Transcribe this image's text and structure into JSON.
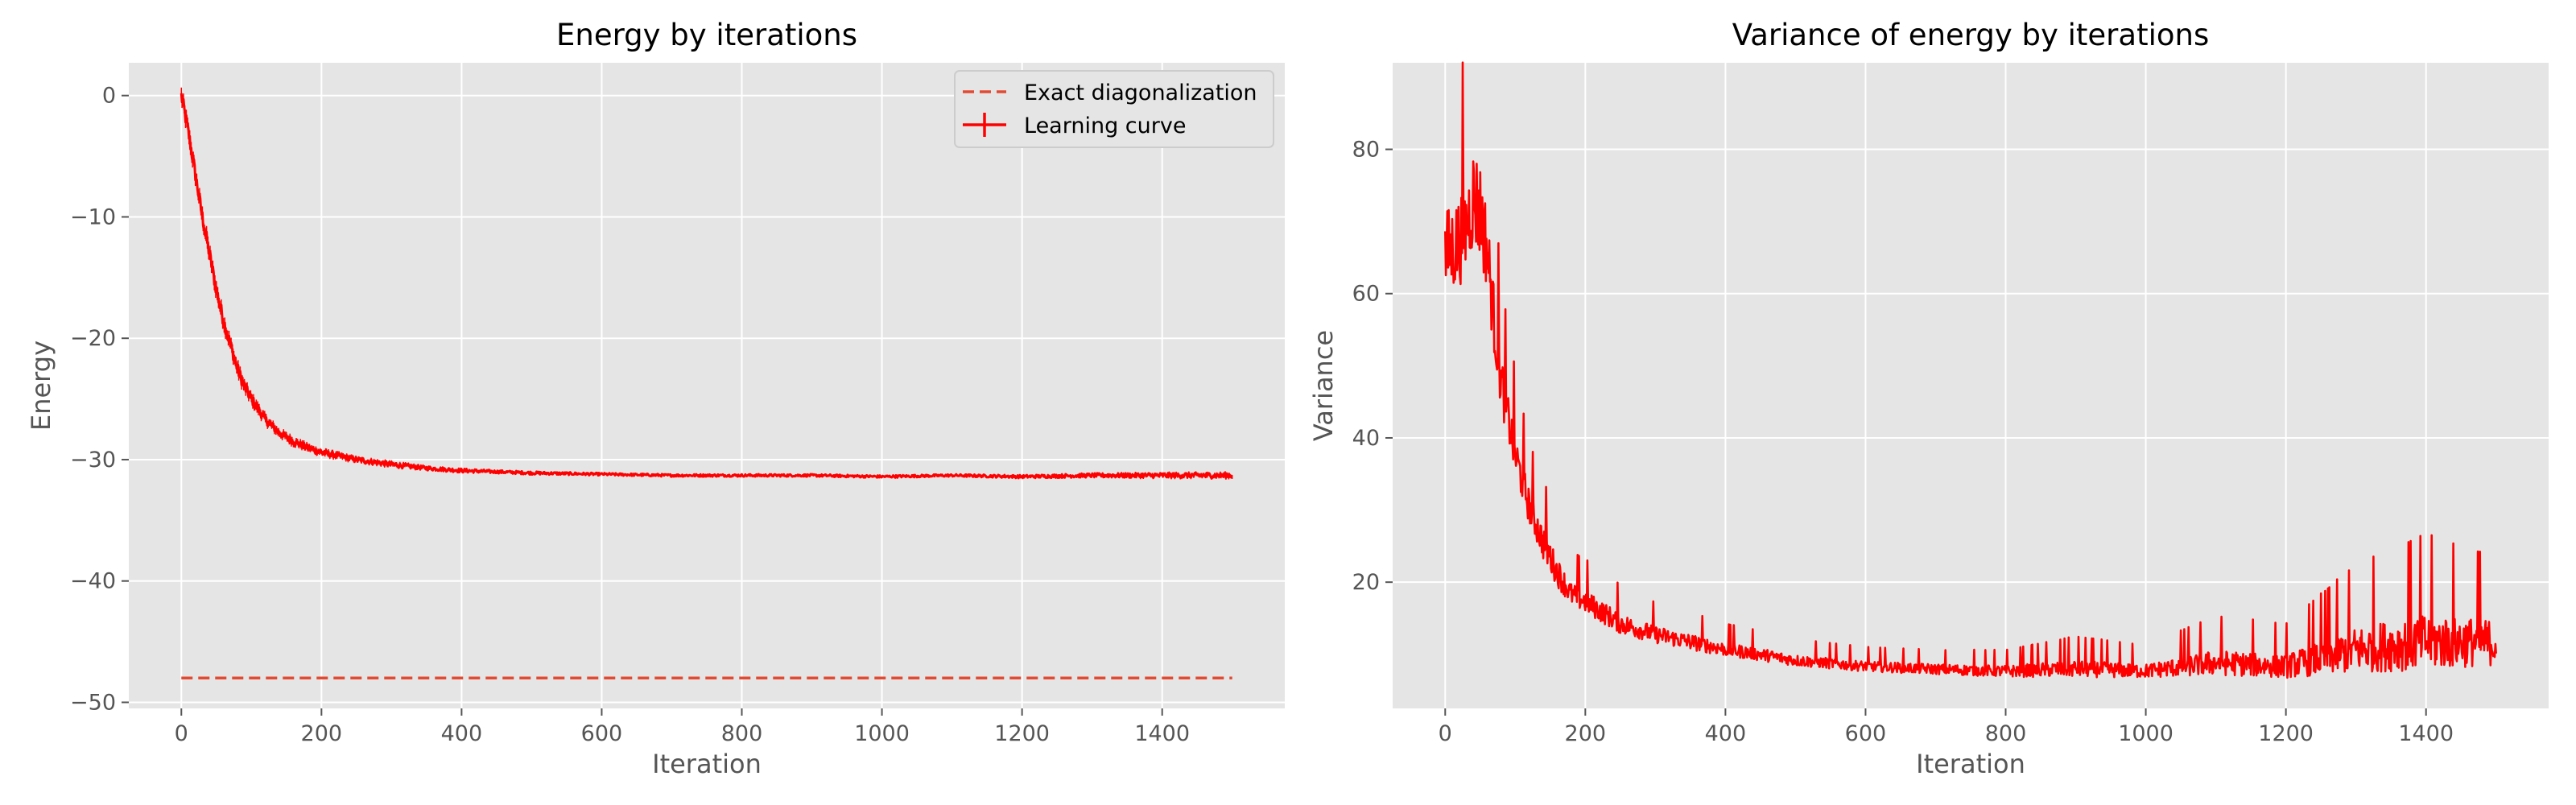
{
  "colors": {
    "panel_bg": "#e5e5e5",
    "grid": "#ffffff",
    "learning_curve": "#ff0000",
    "exact_line": "#e24a33",
    "tick_text": "#555555",
    "label_text": "#555555",
    "title_text": "#000000"
  },
  "chart_data": [
    {
      "type": "line",
      "title": "Energy by iterations",
      "xlabel": "Iteration",
      "ylabel": "Energy",
      "xlim": [
        -75,
        1575
      ],
      "ylim": [
        -50.5,
        2.7
      ],
      "xticks": [
        0,
        200,
        400,
        600,
        800,
        1000,
        1200,
        1400
      ],
      "yticks": [
        0,
        -10,
        -20,
        -30,
        -40,
        -50
      ],
      "ytick_labels": [
        "0",
        "−10",
        "−20",
        "−30",
        "−40",
        "−50"
      ],
      "grid": true,
      "legend": {
        "placement": "top-right",
        "entries": [
          "Exact diagonalization",
          "Learning curve"
        ]
      },
      "series": [
        {
          "name": "Exact diagonalization",
          "style": "dashed",
          "x": [
            0,
            1500
          ],
          "y": [
            -48.0,
            -48.0
          ]
        },
        {
          "name": "Learning curve",
          "style": "solid-with-errorbars",
          "x": [
            0,
            10,
            20,
            30,
            40,
            50,
            60,
            70,
            80,
            90,
            100,
            120,
            140,
            160,
            180,
            200,
            250,
            300,
            350,
            400,
            450,
            500,
            600,
            700,
            800,
            900,
            1000,
            1100,
            1200,
            1300,
            1400,
            1500
          ],
          "y": [
            0,
            -3,
            -6.5,
            -10,
            -13,
            -16,
            -18.5,
            -20.5,
            -22.5,
            -24,
            -25,
            -26.7,
            -27.8,
            -28.5,
            -29,
            -29.4,
            -30,
            -30.4,
            -30.7,
            -30.9,
            -31,
            -31.1,
            -31.2,
            -31.3,
            -31.3,
            -31.3,
            -31.4,
            -31.3,
            -31.4,
            -31.3,
            -31.3,
            -31.3
          ],
          "noise": [
            0.6,
            0.6,
            0.6,
            0.6,
            0.6,
            0.6,
            0.55,
            0.5,
            0.5,
            0.45,
            0.4,
            0.35,
            0.3,
            0.3,
            0.25,
            0.25,
            0.2,
            0.2,
            0.15,
            0.15,
            0.12,
            0.12,
            0.1,
            0.1,
            0.1,
            0.1,
            0.1,
            0.1,
            0.12,
            0.15,
            0.18,
            0.2
          ]
        }
      ]
    },
    {
      "type": "line",
      "title": "Variance of energy by iterations",
      "xlabel": "Iteration",
      "ylabel": "Variance",
      "xlim": [
        -75,
        1575
      ],
      "ylim": [
        2.5,
        92
      ],
      "xticks": [
        0,
        200,
        400,
        600,
        800,
        1000,
        1200,
        1400
      ],
      "yticks": [
        20,
        40,
        60,
        80
      ],
      "ytick_labels": [
        "20",
        "40",
        "60",
        "80"
      ],
      "grid": true,
      "series": [
        {
          "style": "solid",
          "x": [
            0,
            10,
            20,
            30,
            40,
            50,
            60,
            70,
            80,
            90,
            100,
            120,
            140,
            160,
            180,
            200,
            250,
            300,
            350,
            400,
            450,
            500,
            600,
            700,
            800,
            900,
            1000,
            1100,
            1200,
            1300,
            1400,
            1500
          ],
          "y": [
            64,
            65,
            66,
            68,
            72,
            70,
            65,
            55,
            47,
            42,
            37,
            30,
            25,
            21,
            18,
            17,
            14,
            12.5,
            11.5,
            10.5,
            9.8,
            9,
            8.2,
            7.8,
            7.5,
            7.8,
            7.5,
            8.5,
            8,
            10,
            11,
            11
          ],
          "noise": [
            8,
            8,
            8,
            8,
            9,
            9,
            7,
            6,
            5,
            4,
            4,
            3,
            3,
            2.5,
            2,
            2,
            1.8,
            1.5,
            1.4,
            1.2,
            1.1,
            1,
            0.9,
            0.9,
            1,
            1.5,
            1.2,
            2.2,
            2,
            4,
            5,
            4
          ]
        }
      ]
    }
  ]
}
